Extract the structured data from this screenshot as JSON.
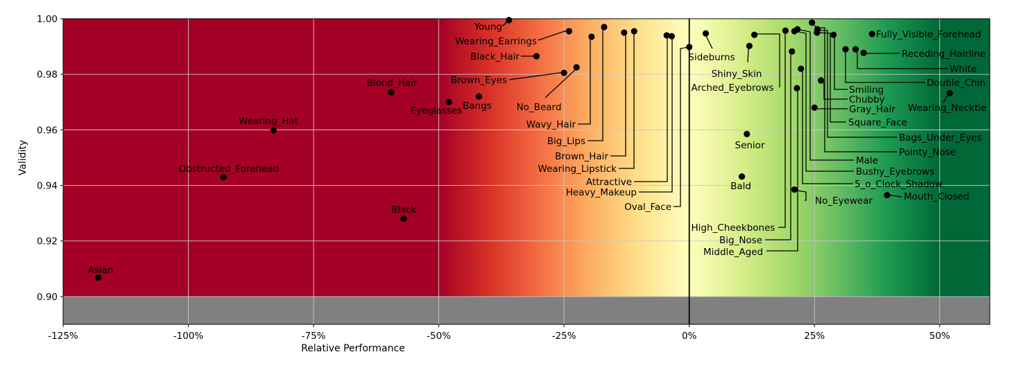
{
  "chart_data": {
    "type": "scatter",
    "title": "",
    "xlabel": "Relative Performance",
    "ylabel": "Validity",
    "xlim": [
      -125,
      60
    ],
    "ylim": [
      0.89,
      1.0
    ],
    "invalid_below": 0.9,
    "x_ticks": [
      -125,
      -100,
      -75,
      -50,
      -25,
      0,
      25,
      50
    ],
    "x_tick_labels": [
      "-125%",
      "-100%",
      "-75%",
      "-50%",
      "-25%",
      "0%",
      "25%",
      "50%"
    ],
    "y_ticks": [
      0.9,
      0.92,
      0.94,
      0.96,
      0.98,
      1.0
    ],
    "y_tick_labels": [
      "0.90",
      "0.92",
      "0.94",
      "0.96",
      "0.98",
      "1.00"
    ],
    "grid": true,
    "background_gradient": {
      "stops": [
        {
          "x": -125,
          "color": "#a50026"
        },
        {
          "x": -50,
          "color": "#a50026"
        },
        {
          "x": -40,
          "color": "#d73027"
        },
        {
          "x": -30,
          "color": "#f46d43"
        },
        {
          "x": -20,
          "color": "#fdae61"
        },
        {
          "x": -10,
          "color": "#fee08b"
        },
        {
          "x": 0,
          "color": "#ffffbf"
        },
        {
          "x": 10,
          "color": "#d9ef8b"
        },
        {
          "x": 20,
          "color": "#a6d96a"
        },
        {
          "x": 30,
          "color": "#66bd63"
        },
        {
          "x": 40,
          "color": "#1a9850"
        },
        {
          "x": 50,
          "color": "#006837"
        },
        {
          "x": 60,
          "color": "#006837"
        }
      ],
      "invalid_color": "#808080"
    },
    "points": [
      {
        "label": "Asian",
        "x": -118,
        "y": 0.9068
      },
      {
        "label": "Wearing_Hat",
        "x": -83,
        "y": 0.9598
      },
      {
        "label": "Obstructed_Forehead",
        "x": -93,
        "y": 0.943
      },
      {
        "label": "Blond_Hair",
        "x": -59.5,
        "y": 0.9735
      },
      {
        "label": "Black",
        "x": -57,
        "y": 0.928
      },
      {
        "label": "Eyeglasses",
        "x": -48,
        "y": 0.97
      },
      {
        "label": "Bangs",
        "x": -42,
        "y": 0.972
      },
      {
        "label": "Young",
        "x": -36,
        "y": 0.9995
      },
      {
        "label": "Wearing_Earrings",
        "x": -24,
        "y": 0.9955
      },
      {
        "label": "Black_Hair",
        "x": -30.5,
        "y": 0.9865
      },
      {
        "label": "Brown_Eyes",
        "x": -25,
        "y": 0.9805
      },
      {
        "label": "No_Beard",
        "x": -22.5,
        "y": 0.9825
      },
      {
        "label": "Wavy_Hair",
        "x": -19.5,
        "y": 0.9935
      },
      {
        "label": "Big_Lips",
        "x": -17,
        "y": 0.997
      },
      {
        "label": "Brown_Hair",
        "x": -13,
        "y": 0.995
      },
      {
        "label": "Wearing_Lipstick",
        "x": -11,
        "y": 0.9955
      },
      {
        "label": "Attractive",
        "x": -4.5,
        "y": 0.994
      },
      {
        "label": "Heavy_Makeup",
        "x": -3.5,
        "y": 0.9937
      },
      {
        "label": "Oval_Face",
        "x": 0,
        "y": 0.9898
      },
      {
        "label": "Sideburns",
        "x": 3.3,
        "y": 0.9947
      },
      {
        "label": "Shiny_Skin",
        "x": 12,
        "y": 0.9902
      },
      {
        "label": "Arched_Eyebrows",
        "x": 13,
        "y": 0.9942
      },
      {
        "label": "Senior",
        "x": 11.5,
        "y": 0.9585
      },
      {
        "label": "Bald",
        "x": 10.5,
        "y": 0.9432
      },
      {
        "label": "High_Cheekbones",
        "x": 19.2,
        "y": 0.9957
      },
      {
        "label": "Big_Nose",
        "x": 20.5,
        "y": 0.9882
      },
      {
        "label": "Middle_Aged",
        "x": 21.5,
        "y": 0.975
      },
      {
        "label": "No_Eyewear",
        "x": 21,
        "y": 0.9385
      },
      {
        "label": "5_o_Clock_Shadow",
        "x": 22.3,
        "y": 0.982
      },
      {
        "label": "Bushy_Eyebrows",
        "x": 21,
        "y": 0.9955
      },
      {
        "label": "Male",
        "x": 21.6,
        "y": 0.9962
      },
      {
        "label": "Pointy_Nose",
        "x": 24.5,
        "y": 0.9986
      },
      {
        "label": "Bags_Under_Eyes",
        "x": 25.6,
        "y": 0.9962
      },
      {
        "label": "Square_Face",
        "x": 25.5,
        "y": 0.995
      },
      {
        "label": "Gray_Hair",
        "x": 25,
        "y": 0.968
      },
      {
        "label": "Chubby",
        "x": 26.3,
        "y": 0.9778
      },
      {
        "label": "Smiling",
        "x": 28.8,
        "y": 0.9942
      },
      {
        "label": "Double_Chin",
        "x": 31.2,
        "y": 0.989
      },
      {
        "label": "White",
        "x": 33.2,
        "y": 0.989
      },
      {
        "label": "Receding_Hairline",
        "x": 34.8,
        "y": 0.9877
      },
      {
        "label": "Fully_Visible_Forehead",
        "x": 36.5,
        "y": 0.9945
      },
      {
        "label": "Mouth_Closed",
        "x": 39.5,
        "y": 0.9365
      },
      {
        "label": "Wearing_Necktie",
        "x": 52,
        "y": 0.9732
      }
    ]
  }
}
